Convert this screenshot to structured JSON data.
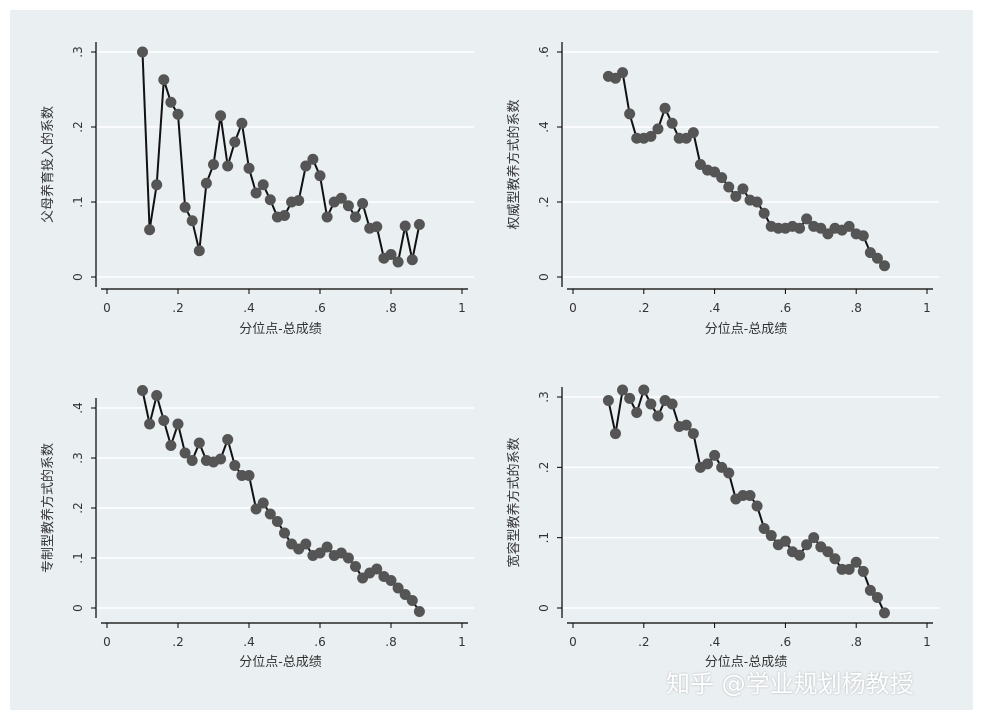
{
  "chart_data": [
    {
      "type": "line",
      "xlabel": "分位点-总成绩",
      "ylabel": "父母养育投入的系数",
      "xlim": [
        0,
        1
      ],
      "ylim": [
        0,
        0.3
      ],
      "xticks": [
        "0",
        ".2",
        ".4",
        ".6",
        ".8",
        "1"
      ],
      "yticks": [
        "0",
        ".1",
        ".2",
        ".3"
      ],
      "x": [
        0.1,
        0.12,
        0.14,
        0.16,
        0.18,
        0.2,
        0.22,
        0.24,
        0.26,
        0.28,
        0.3,
        0.32,
        0.34,
        0.36,
        0.38,
        0.4,
        0.42,
        0.44,
        0.46,
        0.48,
        0.5,
        0.52,
        0.54,
        0.56,
        0.58,
        0.6,
        0.62,
        0.64,
        0.66,
        0.68,
        0.7,
        0.72,
        0.74,
        0.76,
        0.78,
        0.8,
        0.82,
        0.84,
        0.86,
        0.88
      ],
      "y": [
        0.3,
        0.063,
        0.123,
        0.263,
        0.233,
        0.217,
        0.093,
        0.075,
        0.035,
        0.125,
        0.15,
        0.215,
        0.148,
        0.18,
        0.205,
        0.145,
        0.112,
        0.123,
        0.103,
        0.08,
        0.082,
        0.1,
        0.102,
        0.148,
        0.157,
        0.135,
        0.08,
        0.1,
        0.105,
        0.095,
        0.08,
        0.098,
        0.065,
        0.067,
        0.025,
        0.03,
        0.02,
        0.068,
        0.023,
        0.07
      ]
    },
    {
      "type": "line",
      "xlabel": "分位点-总成绩",
      "ylabel": "权威型教养方式的系数",
      "xlim": [
        0,
        1
      ],
      "ylim": [
        0,
        0.6
      ],
      "xticks": [
        "0",
        ".2",
        ".4",
        ".6",
        ".8",
        "1"
      ],
      "yticks": [
        "0",
        ".2",
        ".4",
        ".6"
      ],
      "x": [
        0.1,
        0.12,
        0.14,
        0.16,
        0.18,
        0.2,
        0.22,
        0.24,
        0.26,
        0.28,
        0.3,
        0.32,
        0.34,
        0.36,
        0.38,
        0.4,
        0.42,
        0.44,
        0.46,
        0.48,
        0.5,
        0.52,
        0.54,
        0.56,
        0.58,
        0.6,
        0.62,
        0.64,
        0.66,
        0.68,
        0.7,
        0.72,
        0.74,
        0.76,
        0.78,
        0.8,
        0.82,
        0.84,
        0.86,
        0.88
      ],
      "y": [
        0.535,
        0.53,
        0.545,
        0.435,
        0.37,
        0.37,
        0.375,
        0.395,
        0.45,
        0.41,
        0.37,
        0.37,
        0.385,
        0.3,
        0.285,
        0.28,
        0.265,
        0.24,
        0.215,
        0.235,
        0.205,
        0.2,
        0.17,
        0.135,
        0.13,
        0.13,
        0.135,
        0.13,
        0.155,
        0.135,
        0.13,
        0.115,
        0.13,
        0.125,
        0.135,
        0.115,
        0.11,
        0.065,
        0.05,
        0.03
      ]
    },
    {
      "type": "line",
      "xlabel": "分位点-总成绩",
      "ylabel": "专制型教养方式的系数",
      "xlim": [
        0,
        1
      ],
      "ylim": [
        -0.01,
        0.4
      ],
      "xticks": [
        "0",
        ".2",
        ".4",
        ".6",
        ".8",
        "1"
      ],
      "yticks": [
        "0",
        ".1",
        ".2",
        ".3",
        ".4"
      ],
      "x": [
        0.1,
        0.12,
        0.14,
        0.16,
        0.18,
        0.2,
        0.22,
        0.24,
        0.26,
        0.28,
        0.3,
        0.32,
        0.34,
        0.36,
        0.38,
        0.4,
        0.42,
        0.44,
        0.46,
        0.48,
        0.5,
        0.52,
        0.54,
        0.56,
        0.58,
        0.6,
        0.62,
        0.64,
        0.66,
        0.68,
        0.7,
        0.72,
        0.74,
        0.76,
        0.78,
        0.8,
        0.82,
        0.84,
        0.86,
        0.88
      ],
      "y": [
        0.435,
        0.368,
        0.425,
        0.375,
        0.325,
        0.368,
        0.31,
        0.295,
        0.33,
        0.295,
        0.292,
        0.298,
        0.337,
        0.285,
        0.265,
        0.265,
        0.198,
        0.21,
        0.188,
        0.173,
        0.15,
        0.128,
        0.118,
        0.128,
        0.105,
        0.11,
        0.122,
        0.105,
        0.11,
        0.1,
        0.083,
        0.06,
        0.07,
        0.078,
        0.063,
        0.055,
        0.04,
        0.027,
        0.015,
        -0.007
      ]
    },
    {
      "type": "line",
      "xlabel": "分位点-总成绩",
      "ylabel": "宽容型教养方式的系数",
      "xlim": [
        0,
        1
      ],
      "ylim": [
        -0.01,
        0.3
      ],
      "xticks": [
        "0",
        ".2",
        ".4",
        ".6",
        ".8",
        "1"
      ],
      "yticks": [
        "0",
        ".1",
        ".2",
        ".3"
      ],
      "x": [
        0.1,
        0.12,
        0.14,
        0.16,
        0.18,
        0.2,
        0.22,
        0.24,
        0.26,
        0.28,
        0.3,
        0.32,
        0.34,
        0.36,
        0.38,
        0.4,
        0.42,
        0.44,
        0.46,
        0.48,
        0.5,
        0.52,
        0.54,
        0.56,
        0.58,
        0.6,
        0.62,
        0.64,
        0.66,
        0.68,
        0.7,
        0.72,
        0.74,
        0.76,
        0.78,
        0.8,
        0.82,
        0.84,
        0.86,
        0.88
      ],
      "y": [
        0.295,
        0.248,
        0.31,
        0.298,
        0.278,
        0.31,
        0.29,
        0.273,
        0.295,
        0.29,
        0.258,
        0.26,
        0.248,
        0.2,
        0.205,
        0.217,
        0.2,
        0.192,
        0.155,
        0.16,
        0.16,
        0.145,
        0.113,
        0.103,
        0.09,
        0.095,
        0.08,
        0.075,
        0.09,
        0.1,
        0.087,
        0.08,
        0.07,
        0.055,
        0.055,
        0.065,
        0.052,
        0.025,
        0.015,
        -0.007
      ]
    }
  ],
  "watermark": "知乎 @学业规划杨教授"
}
